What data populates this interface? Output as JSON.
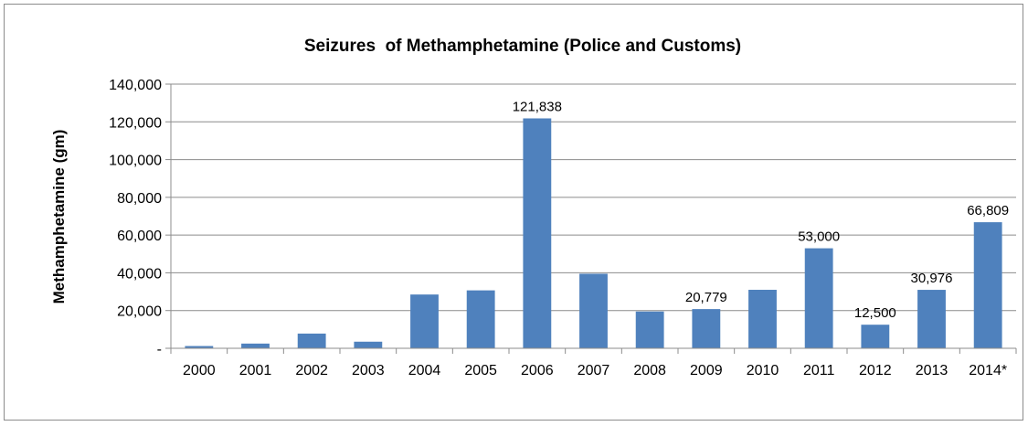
{
  "chart_data": {
    "type": "bar",
    "title": "Seizures  of Methamphetamine (Police and Customs)",
    "xlabel": "",
    "ylabel": "Methamphetamine (gm)",
    "ylim": [
      0,
      140000
    ],
    "yticks": [
      0,
      20000,
      40000,
      60000,
      80000,
      100000,
      120000,
      140000
    ],
    "ytick_labels": [
      "-",
      "20,000",
      "40,000",
      "60,000",
      "80,000",
      "100,000",
      "120,000",
      "140,000"
    ],
    "grid": true,
    "legend": "none",
    "bar_color": "#4F81BD",
    "categories": [
      "2000",
      "2001",
      "2002",
      "2003",
      "2004",
      "2005",
      "2006",
      "2007",
      "2008",
      "2009",
      "2010",
      "2011",
      "2012",
      "2013",
      "2014*"
    ],
    "values": [
      1200,
      2500,
      7800,
      3500,
      28500,
      30700,
      121838,
      39500,
      19500,
      20779,
      31000,
      53000,
      12500,
      30976,
      66809
    ],
    "data_labels": [
      "",
      "",
      "",
      "",
      "",
      "",
      "121,838",
      "",
      "",
      "20,779",
      "",
      "53,000",
      "12,500",
      "30,976",
      "66,809"
    ]
  }
}
